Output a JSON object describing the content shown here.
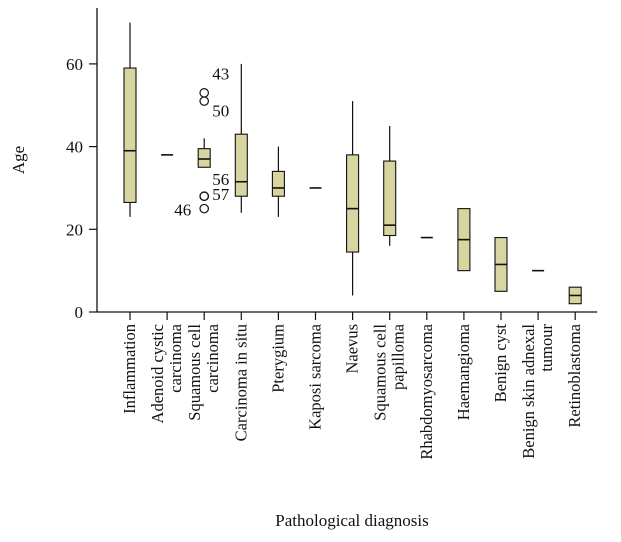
{
  "chart_data": {
    "type": "box",
    "xlabel": "Pathological diagnosis",
    "ylabel": "Age",
    "ylim": [
      0,
      70
    ],
    "yticks": [
      0,
      20,
      40,
      60
    ],
    "box_color": "#d8d5a0",
    "categories": [
      {
        "name": [
          "Inflammation"
        ],
        "min": 23,
        "q1": 26.5,
        "median": 39,
        "q3": 59,
        "max": 70,
        "outliers": []
      },
      {
        "name": [
          "Adenoid cystic",
          "carcinoma"
        ],
        "min": 38,
        "q1": 38,
        "median": 38,
        "q3": 38,
        "max": 38,
        "outliers": []
      },
      {
        "name": [
          "Squamous cell",
          "carcinoma"
        ],
        "min": 35,
        "q1": 35,
        "median": 37,
        "q3": 39.5,
        "max": 42,
        "outliers": [
          {
            "value": 53,
            "label": "43"
          },
          {
            "value": 51,
            "label": "50"
          },
          {
            "value": 28,
            "label": "56"
          },
          {
            "value": 25,
            "label": "46"
          },
          {
            "value": 28,
            "label": "57"
          }
        ]
      },
      {
        "name": [
          "Carcinoma in situ"
        ],
        "min": 24,
        "q1": 28,
        "median": 31.5,
        "q3": 43,
        "max": 60,
        "outliers": []
      },
      {
        "name": [
          "Pterygium"
        ],
        "min": 23,
        "q1": 28,
        "median": 30,
        "q3": 34,
        "max": 40,
        "outliers": []
      },
      {
        "name": [
          "Kaposi sarcoma"
        ],
        "min": 30,
        "q1": 30,
        "median": 30,
        "q3": 30,
        "max": 30,
        "outliers": []
      },
      {
        "name": [
          "Naevus"
        ],
        "min": 4,
        "q1": 14.5,
        "median": 25,
        "q3": 38,
        "max": 51,
        "outliers": []
      },
      {
        "name": [
          "Squamous cell",
          "papilloma"
        ],
        "min": 16,
        "q1": 18.5,
        "median": 21,
        "q3": 36.5,
        "max": 45,
        "outliers": []
      },
      {
        "name": [
          "Rhabdomyosarcoma"
        ],
        "min": 18,
        "q1": 18,
        "median": 18,
        "q3": 18,
        "max": 18,
        "outliers": []
      },
      {
        "name": [
          "Haemangioma"
        ],
        "min": 10,
        "q1": 10,
        "median": 17.5,
        "q3": 25,
        "max": 25,
        "outliers": []
      },
      {
        "name": [
          "Benign cyst"
        ],
        "min": 5,
        "q1": 5,
        "median": 11.5,
        "q3": 18,
        "max": 18,
        "outliers": []
      },
      {
        "name": [
          "Benign skin adnexal",
          "tumour"
        ],
        "min": 10,
        "q1": 10,
        "median": 10,
        "q3": 10,
        "max": 10,
        "outliers": []
      },
      {
        "name": [
          "Retinoblastoma"
        ],
        "min": 2,
        "q1": 2,
        "median": 4,
        "q3": 6,
        "max": 6,
        "outliers": []
      }
    ]
  }
}
